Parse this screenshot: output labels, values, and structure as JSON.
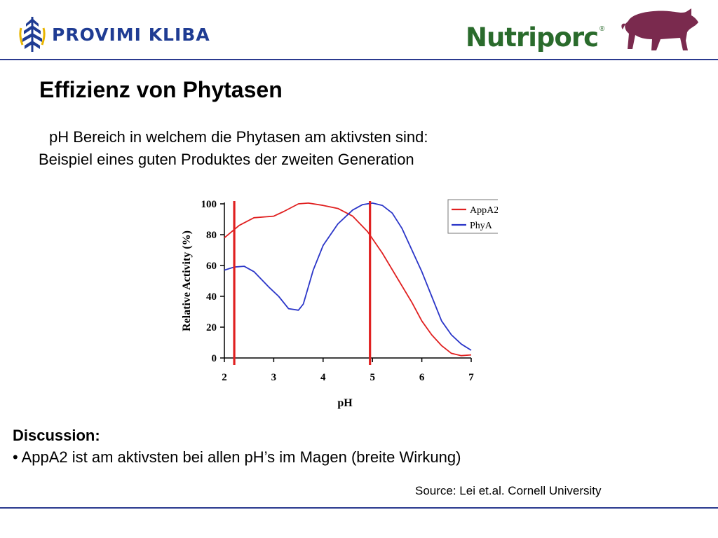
{
  "header": {
    "logo_left": {
      "text": "PROVIMI KLIBA",
      "color": "#1f3c93",
      "icon": "wheat-emblem-icon"
    },
    "logo_right": {
      "text": "Nutriporc",
      "registered_mark": "®",
      "color": "#2a6b2c",
      "icon": "pig-icon",
      "icon_color": "#7a2a4e"
    },
    "rule_color": "#2b3a8f"
  },
  "slide": {
    "title": "Effizienz von Phytasen",
    "subtitle_1": "pH Bereich in welchem die Phytasen am aktivsten sind:",
    "subtitle_2": "Beispiel eines guten Produktes der zweiten Generation"
  },
  "chart_data": {
    "type": "line",
    "xlabel": "pH",
    "ylabel": "Relative Activity (%)",
    "xlim": [
      2,
      7
    ],
    "ylim": [
      0,
      100
    ],
    "x_ticks": [
      2,
      3,
      4,
      5,
      6,
      7
    ],
    "y_ticks": [
      0,
      20,
      40,
      60,
      80,
      100
    ],
    "legend_position": "top-right",
    "grid": false,
    "series": [
      {
        "name": "AppA2",
        "color": "#e02020",
        "points": [
          [
            2.0,
            78
          ],
          [
            2.3,
            86
          ],
          [
            2.6,
            91
          ],
          [
            3.0,
            92
          ],
          [
            3.2,
            95
          ],
          [
            3.5,
            100
          ],
          [
            3.7,
            100.5
          ],
          [
            4.0,
            99
          ],
          [
            4.3,
            97
          ],
          [
            4.6,
            92
          ],
          [
            4.9,
            82
          ],
          [
            5.2,
            68
          ],
          [
            5.5,
            52
          ],
          [
            5.8,
            36
          ],
          [
            6.0,
            24
          ],
          [
            6.2,
            15
          ],
          [
            6.4,
            8
          ],
          [
            6.6,
            3
          ],
          [
            6.8,
            1.5
          ],
          [
            7.0,
            2
          ]
        ]
      },
      {
        "name": "PhyA",
        "color": "#2a35c8",
        "points": [
          [
            2.0,
            57
          ],
          [
            2.2,
            59
          ],
          [
            2.4,
            59.5
          ],
          [
            2.6,
            56
          ],
          [
            2.9,
            46
          ],
          [
            3.1,
            40
          ],
          [
            3.3,
            32
          ],
          [
            3.5,
            31
          ],
          [
            3.6,
            35
          ],
          [
            3.8,
            57
          ],
          [
            4.0,
            73
          ],
          [
            4.3,
            87
          ],
          [
            4.6,
            96
          ],
          [
            4.8,
            99.5
          ],
          [
            5.0,
            100.5
          ],
          [
            5.2,
            99
          ],
          [
            5.4,
            94
          ],
          [
            5.6,
            84
          ],
          [
            5.8,
            70
          ],
          [
            6.0,
            56
          ],
          [
            6.2,
            40
          ],
          [
            6.4,
            24
          ],
          [
            6.6,
            15
          ],
          [
            6.8,
            9
          ],
          [
            7.0,
            5
          ]
        ]
      }
    ],
    "markers": [
      {
        "type": "vertical-line",
        "x": 2.2,
        "color": "#e02020"
      },
      {
        "type": "vertical-line",
        "x": 4.95,
        "color": "#e02020"
      }
    ]
  },
  "discussion": {
    "title": "Discussion:",
    "bullet": "• AppA2 ist am aktivsten bei allen pH’s im Magen (breite Wirkung)"
  },
  "source": "Source: Lei et.al. Cornell University"
}
